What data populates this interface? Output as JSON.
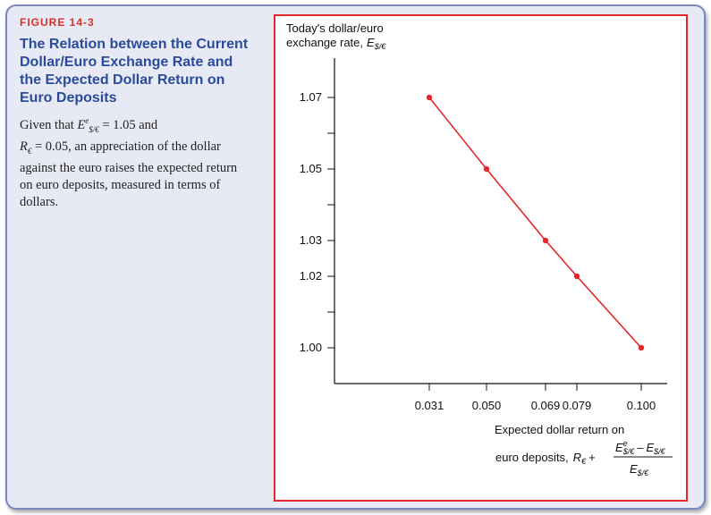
{
  "figure": {
    "label": "FIGURE 14-3",
    "title": "The Relation between the Current Dollar/Euro Exchange Rate and the Expected Dollar Return on Euro Deposits",
    "caption_lead": "Given that",
    "caption_sym1": "E",
    "caption_sym1_sup": "e",
    "caption_sym1_sub": "$/€",
    "caption_eq1": " = 1.05 and",
    "caption_sym2": "R",
    "caption_sym2_sub": "€",
    "caption_eq2": " = 0.05, an appreciation of the dollar against the euro raises the expected return on euro deposits, measured in terms of dollars."
  },
  "colors": {
    "accent": "#e3272a",
    "title": "#2a4b9b",
    "label": "#d9302a",
    "panel_bg": "#e7eaf4"
  },
  "chart_data": {
    "type": "line",
    "ylabel_line1": "Today's dollar/euro",
    "ylabel_line2": "exchange rate,",
    "ylabel_sym": "E",
    "ylabel_sub": "$/€",
    "xlabel_line1": "Expected dollar return on",
    "xlabel_line2": "euro deposits,",
    "xlabel_R": "R",
    "xlabel_Rsub": "€",
    "xlabel_plus": "+",
    "xlabel_num_sym": "E",
    "xlabel_num_sup": "e",
    "xlabel_num_sub": "$/€",
    "xlabel_minus": "–",
    "xlabel_num_sym2": "E",
    "xlabel_num_sub2": "$/€",
    "xlabel_den_sym": "E",
    "xlabel_den_sub": "$/€",
    "x_ticks": [
      "0.031",
      "0.050",
      "0.069",
      "0.079",
      "0.100"
    ],
    "y_ticks": [
      "1.07",
      "1.05",
      "1.03",
      "1.02",
      "1.00"
    ],
    "x": [
      0.031,
      0.05,
      0.069,
      0.079,
      0.1
    ],
    "y": [
      1.07,
      1.05,
      1.03,
      1.02,
      1.0
    ],
    "ylim": [
      0.99,
      1.078
    ],
    "series_color": "#e3272a"
  }
}
